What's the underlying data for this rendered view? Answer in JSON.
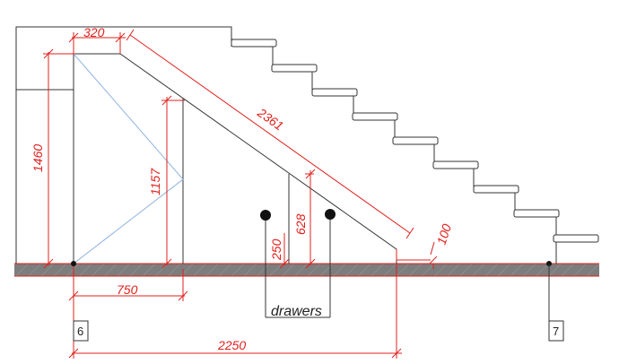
{
  "dimensions": {
    "top_width": "320",
    "diagonal": "2361",
    "height_left": "1460",
    "height_mid": "1157",
    "height_drawer": "628",
    "drawer_gap": "250",
    "offset": "100",
    "bottom_short": "750",
    "bottom_total": "2250"
  },
  "labels": {
    "drawers": "drawers",
    "grid_left": "6",
    "grid_right": "7"
  },
  "colors": {
    "dimension": "#e0201c",
    "outline": "#222222",
    "brace": "#8fb4e0",
    "floor": "#7a7a7a"
  }
}
